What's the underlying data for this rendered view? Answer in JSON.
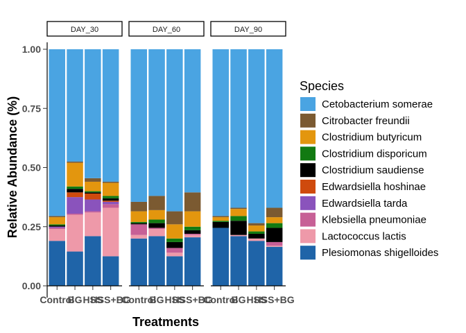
{
  "chart_data": {
    "type": "bar",
    "stacked": true,
    "xlabel": "Treatments",
    "ylabel": "Relative Abundance (%)",
    "ylim": [
      0,
      1
    ],
    "yticks": [
      "0.00",
      "0.25",
      "0.50",
      "0.75",
      "1.00"
    ],
    "ytick_values": [
      0,
      0.25,
      0.5,
      0.75,
      1.0
    ],
    "grid": false,
    "legend_title": "Species",
    "legend_position": "right",
    "categories": [
      "Control",
      "BG",
      "HSS",
      "HSS+BG"
    ],
    "category_labels": [
      "Control",
      "BG",
      "HSS",
      "HSS+BG"
    ],
    "species": [
      {
        "name": "Cetobacterium somerae",
        "color": "#4AA4E2"
      },
      {
        "name": "Citrobacter freundii",
        "color": "#7B5A31"
      },
      {
        "name": "Clostridium butyricum",
        "color": "#E3960E"
      },
      {
        "name": "Clostridium disporicum",
        "color": "#127A12"
      },
      {
        "name": "Clostridium saudiense",
        "color": "#000000"
      },
      {
        "name": "Edwardsiella hoshinae",
        "color": "#CF4A0D"
      },
      {
        "name": "Edwardsiella tarda",
        "color": "#8A53BC"
      },
      {
        "name": "Klebsiella pneumoniae",
        "color": "#C76096"
      },
      {
        "name": "Lactococcus lactis",
        "color": "#EE99A9"
      },
      {
        "name": "Plesiomonas shigelloides",
        "color": "#1F64A8"
      }
    ],
    "panels": [
      {
        "label": "DAY_30",
        "bars": [
          {
            "category": "Control",
            "values": [
              0.705,
              0.005,
              0.03,
              0.005,
              0.005,
              0.0,
              0.005,
              0.005,
              0.05,
              0.19
            ]
          },
          {
            "category": "BG",
            "values": [
              0.475,
              0.005,
              0.1,
              0.01,
              0.015,
              0.02,
              0.07,
              0.005,
              0.155,
              0.145
            ]
          },
          {
            "category": "HSS",
            "values": [
              0.545,
              0.015,
              0.04,
              0.005,
              0.005,
              0.025,
              0.05,
              0.005,
              0.1,
              0.21
            ]
          },
          {
            "category": "HSS+BG",
            "values": [
              0.56,
              0.005,
              0.055,
              0.01,
              0.01,
              0.005,
              0.01,
              0.015,
              0.205,
              0.125
            ]
          }
        ]
      },
      {
        "label": "DAY_60",
        "bars": [
          {
            "category": "Control",
            "values": [
              0.645,
              0.04,
              0.045,
              0.005,
              0.005,
              0.0,
              0.0,
              0.045,
              0.015,
              0.2
            ]
          },
          {
            "category": "BG",
            "values": [
              0.62,
              0.06,
              0.04,
              0.015,
              0.02,
              0.0,
              0.0,
              0.005,
              0.03,
              0.21
            ]
          },
          {
            "category": "HSS",
            "values": [
              0.685,
              0.055,
              0.06,
              0.015,
              0.025,
              0.0,
              0.0,
              0.02,
              0.015,
              0.125
            ]
          },
          {
            "category": "HSS+BG",
            "values": [
              0.605,
              0.08,
              0.065,
              0.015,
              0.015,
              0.0,
              0.0,
              0.005,
              0.01,
              0.205
            ]
          }
        ]
      },
      {
        "label": "DAY_90",
        "bars": [
          {
            "category": "Control",
            "values": [
              0.705,
              0.005,
              0.015,
              0.005,
              0.025,
              0.0,
              0.0,
              0.0,
              0.0,
              0.245
            ]
          },
          {
            "category": "BG",
            "values": [
              0.67,
              0.005,
              0.03,
              0.02,
              0.06,
              0.0,
              0.0,
              0.0,
              0.005,
              0.21
            ]
          },
          {
            "category": "HSS",
            "values": [
              0.735,
              0.01,
              0.025,
              0.01,
              0.02,
              0.0,
              0.0,
              0.0,
              0.01,
              0.19
            ]
          },
          {
            "category": "HSS+BG",
            "values": [
              0.67,
              0.04,
              0.025,
              0.02,
              0.06,
              0.0,
              0.0,
              0.015,
              0.005,
              0.165
            ]
          }
        ]
      }
    ]
  }
}
